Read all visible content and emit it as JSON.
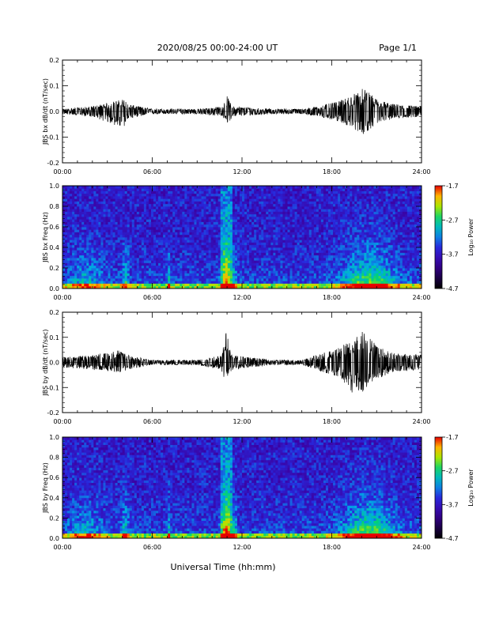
{
  "header": {
    "title": "2020/08/25  00:00-24:00 UT",
    "page": "Page 1/1"
  },
  "xaxis": {
    "label": "Universal Time (hh:mm)",
    "ticks": [
      "00:00",
      "06:00",
      "12:00",
      "18:00",
      "24:00"
    ]
  },
  "colorbar": {
    "label": "Log₁₀ Power",
    "ticks": [
      "-1.7",
      "-2.7",
      "-3.7",
      "-4.7"
    ],
    "range": [
      -4.7,
      -1.7
    ]
  },
  "chart_data": [
    {
      "type": "line",
      "ylabel": "JBS bx dB/dt (nT/sec)",
      "xlim": [
        0,
        24
      ],
      "ylim": [
        -0.2,
        0.2
      ],
      "yticks": [
        "0.2",
        "0.1",
        "0.0",
        "-0.1",
        "-0.2"
      ],
      "x": [
        0,
        2,
        4.2,
        4.3,
        6,
        9,
        10.7,
        11.0,
        11.4,
        14,
        16,
        17,
        18.5,
        19.5,
        20.1,
        21,
        22,
        24
      ],
      "y_max": [
        0.01,
        0.02,
        0.05,
        0.03,
        0.01,
        0.01,
        0.02,
        0.06,
        0.02,
        0.01,
        0.01,
        0.02,
        0.04,
        0.07,
        0.09,
        0.05,
        0.03,
        0.02
      ],
      "y_min": [
        -0.01,
        -0.02,
        -0.07,
        -0.03,
        -0.01,
        -0.01,
        -0.02,
        -0.05,
        -0.02,
        -0.01,
        -0.01,
        -0.02,
        -0.04,
        -0.07,
        -0.09,
        -0.05,
        -0.03,
        -0.02
      ]
    },
    {
      "type": "heatmap",
      "ylabel": "JBS bx Freq (Hz)",
      "xlim": [
        0,
        24
      ],
      "ylim": [
        0,
        1.0
      ],
      "yticks": [
        "1.0",
        "0.8",
        "0.6",
        "0.4",
        "0.2",
        "0.0"
      ],
      "zlim": [
        -4.7,
        -1.7
      ]
    },
    {
      "type": "line",
      "ylabel": "JBS by dB/dt (nT/sec)",
      "xlim": [
        0,
        24
      ],
      "ylim": [
        -0.2,
        0.2
      ],
      "yticks": [
        "0.2",
        "0.1",
        "0.0",
        "-0.1",
        "-0.2"
      ],
      "x": [
        0,
        2,
        3.9,
        4.3,
        6,
        9,
        10.6,
        10.9,
        11.3,
        14,
        16,
        17,
        18.5,
        19.3,
        20.0,
        21,
        22,
        24
      ],
      "y_max": [
        0.02,
        0.03,
        0.05,
        0.03,
        0.01,
        0.01,
        0.03,
        0.14,
        0.03,
        0.01,
        0.01,
        0.03,
        0.06,
        0.09,
        0.13,
        0.07,
        0.04,
        0.03
      ],
      "y_min": [
        -0.02,
        -0.03,
        -0.04,
        -0.03,
        -0.01,
        -0.01,
        -0.03,
        -0.09,
        -0.03,
        -0.01,
        -0.01,
        -0.03,
        -0.06,
        -0.12,
        -0.13,
        -0.07,
        -0.04,
        -0.03
      ]
    },
    {
      "type": "heatmap",
      "ylabel": "JBS by Freq (Hz)",
      "xlim": [
        0,
        24
      ],
      "ylim": [
        0,
        1.0
      ],
      "yticks": [
        "1.0",
        "0.8",
        "0.6",
        "0.4",
        "0.2",
        "0.0"
      ],
      "zlim": [
        -4.7,
        -1.7
      ]
    }
  ]
}
